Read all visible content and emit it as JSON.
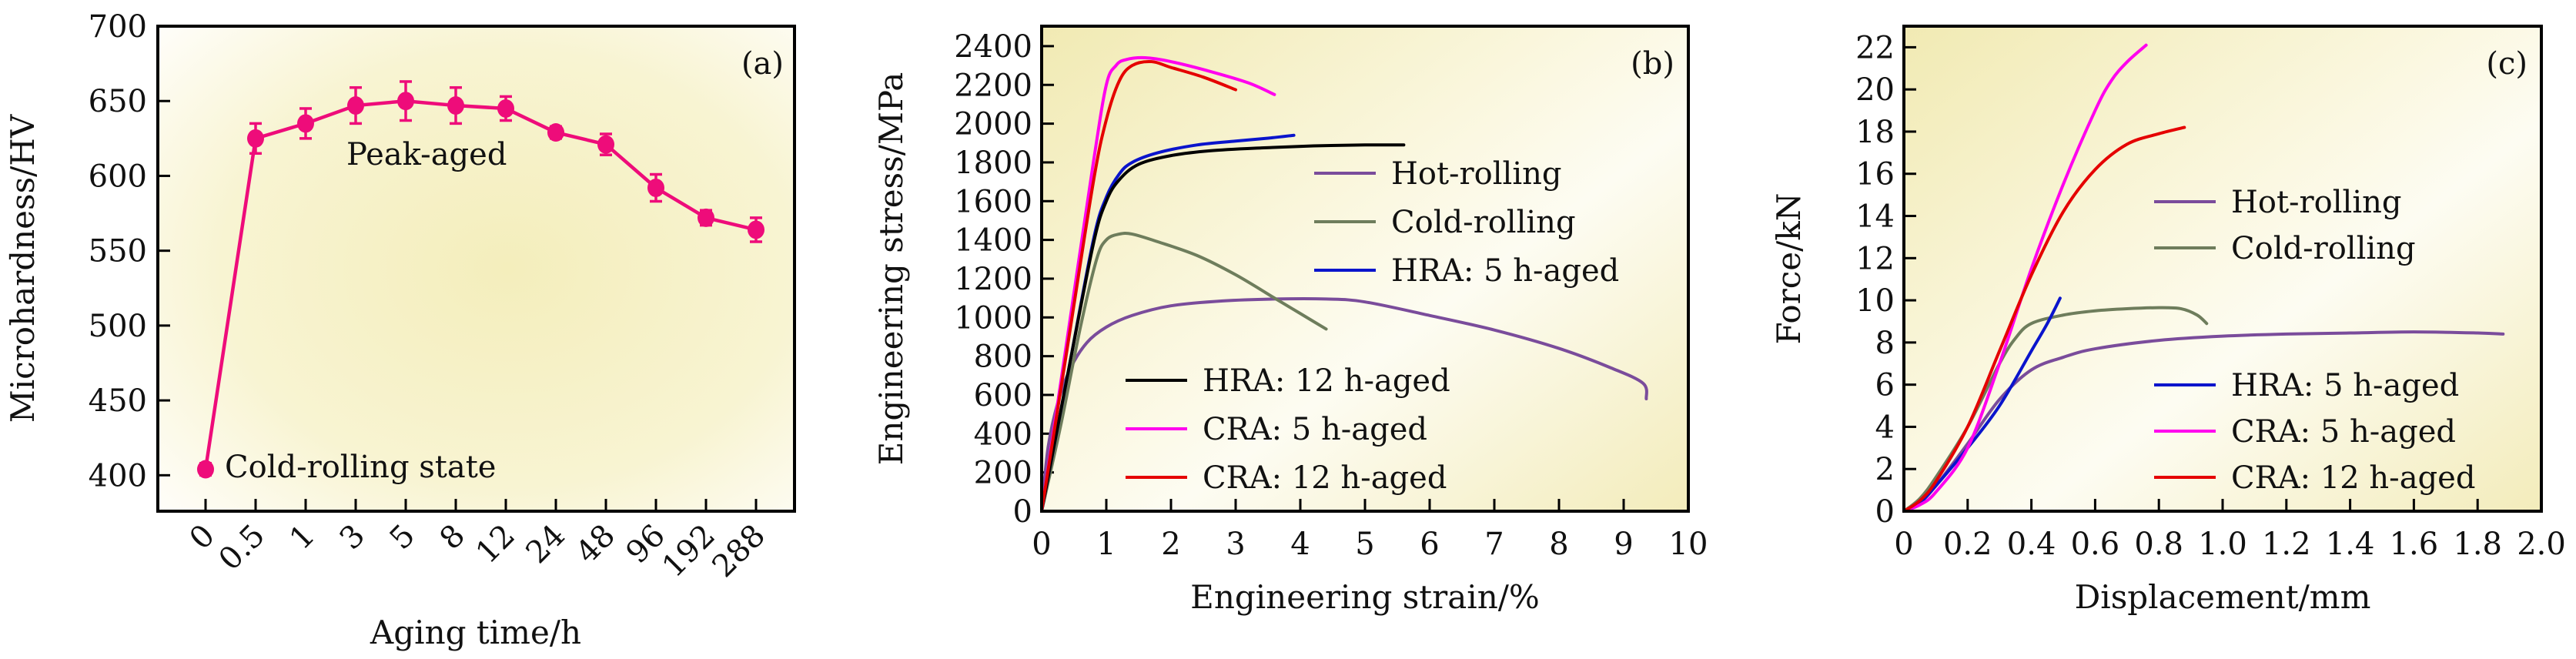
{
  "figure": {
    "background_gradient": [
      "#f3eebb",
      "#fffefa"
    ],
    "frame_color": "#000000"
  },
  "chart_data": [
    {
      "id": "a",
      "type": "line",
      "panel_label": "(a)",
      "title": "",
      "xlabel": "Aging time/h",
      "ylabel": "Microhardness/HV",
      "categories": [
        "0",
        "0.5",
        "1",
        "3",
        "5",
        "8",
        "12",
        "24",
        "48",
        "96",
        "192",
        "288"
      ],
      "ylim": [
        376,
        700
      ],
      "yticks": [
        400,
        450,
        500,
        550,
        600,
        650,
        700
      ],
      "grid": false,
      "series": [
        {
          "name": "Microhardness",
          "color": "#ee0c7a",
          "values": [
            404,
            625,
            635,
            647,
            650,
            647,
            645,
            629,
            621,
            592,
            572,
            564
          ],
          "errors": [
            4,
            10,
            10,
            12,
            13,
            12,
            8,
            4,
            7,
            9,
            5,
            8
          ]
        }
      ],
      "annotations": [
        {
          "text": "Peak-aged",
          "x_category": "5",
          "y": 613
        },
        {
          "text": "Cold-rolling state",
          "x_category": "0",
          "y": 404
        }
      ]
    },
    {
      "id": "b",
      "type": "line",
      "panel_label": "(b)",
      "title": "",
      "xlabel": "Engineering strain/%",
      "ylabel": "Engineering stress/MPa",
      "xlim": [
        0,
        10
      ],
      "ylim": [
        0,
        2503
      ],
      "xticks": [
        0,
        1,
        2,
        3,
        4,
        5,
        6,
        7,
        8,
        9,
        10
      ],
      "yticks": [
        0,
        200,
        400,
        600,
        800,
        1000,
        1200,
        1400,
        1600,
        1800,
        2000,
        2200,
        2400
      ],
      "grid": false,
      "legend_groups": [
        {
          "placement": "center-right",
          "items": [
            "Hot-rolling",
            "Cold-rolling",
            "HRA: 5 h-aged"
          ]
        },
        {
          "placement": "bottom-center",
          "items": [
            "HRA: 12 h-aged",
            "CRA: 5 h-aged",
            "CRA: 12 h-aged"
          ]
        }
      ],
      "series": [
        {
          "name": "Hot-rolling",
          "color": "#7a4c9b",
          "x": [
            0,
            0.1,
            0.25,
            0.45,
            0.7,
            1.0,
            1.4,
            2.0,
            2.8,
            3.6,
            4.4,
            5.0,
            6.0,
            7.0,
            8.0,
            8.8,
            9.3,
            9.35
          ],
          "y": [
            0,
            330,
            560,
            740,
            870,
            950,
            1010,
            1060,
            1085,
            1095,
            1095,
            1080,
            1010,
            935,
            840,
            740,
            660,
            580
          ]
        },
        {
          "name": "Cold-rolling",
          "color": "#6e7d5c",
          "x": [
            0,
            0.3,
            0.6,
            0.85,
            1.0,
            1.2,
            1.4,
            1.8,
            2.4,
            3.0,
            3.6,
            4.0,
            4.4
          ],
          "y": [
            0,
            450,
            950,
            1300,
            1400,
            1430,
            1430,
            1390,
            1320,
            1220,
            1100,
            1020,
            940
          ]
        },
        {
          "name": "HRA: 5 h-aged",
          "color": "#0a14cc",
          "x": [
            0,
            0.4,
            0.8,
            1.0,
            1.2,
            1.4,
            1.8,
            2.4,
            3.0,
            3.5,
            3.9
          ],
          "y": [
            0,
            700,
            1400,
            1620,
            1740,
            1800,
            1850,
            1890,
            1910,
            1925,
            1940
          ]
        },
        {
          "name": "HRA: 12 h-aged",
          "color": "#000000",
          "x": [
            0,
            0.4,
            0.8,
            1.0,
            1.2,
            1.5,
            2.0,
            2.6,
            3.4,
            4.2,
            5.0,
            5.6
          ],
          "y": [
            0,
            700,
            1380,
            1600,
            1710,
            1790,
            1835,
            1860,
            1875,
            1885,
            1890,
            1890
          ]
        },
        {
          "name": "CRA: 5 h-aged",
          "color": "#ff00ee",
          "x": [
            0,
            0.4,
            0.8,
            1.0,
            1.15,
            1.3,
            1.6,
            2.0,
            2.6,
            3.2,
            3.6
          ],
          "y": [
            0,
            900,
            1800,
            2200,
            2300,
            2330,
            2340,
            2320,
            2270,
            2210,
            2150
          ]
        },
        {
          "name": "CRA: 12 h-aged",
          "color": "#e50000",
          "x": [
            0,
            0.4,
            0.8,
            1.0,
            1.2,
            1.4,
            1.7,
            2.0,
            2.5,
            3.0
          ],
          "y": [
            0,
            850,
            1700,
            2020,
            2220,
            2300,
            2320,
            2290,
            2240,
            2175
          ]
        }
      ]
    },
    {
      "id": "c",
      "type": "line",
      "panel_label": "(c)",
      "title": "",
      "xlabel": "Displacement/mm",
      "ylabel": "Force/kN",
      "xlim": [
        0,
        2.0
      ],
      "ylim": [
        0,
        23
      ],
      "xticks": [
        "0",
        "0.2",
        "0.4",
        "0.6",
        "0.8",
        "1.0",
        "1.2",
        "1.4",
        "1.6",
        "1.8",
        "2.0"
      ],
      "yticks": [
        0,
        2,
        4,
        6,
        8,
        10,
        12,
        14,
        16,
        18,
        20,
        22
      ],
      "grid": false,
      "legend_groups": [
        {
          "placement": "center-right",
          "items": [
            "Hot-rolling",
            "Cold-rolling"
          ]
        },
        {
          "placement": "bottom-right",
          "items": [
            "HRA: 5 h-aged",
            "CRA: 5 h-aged",
            "CRA: 12 h-aged"
          ]
        }
      ],
      "series": [
        {
          "name": "Hot-rolling",
          "color": "#7a4c9b",
          "x": [
            0,
            0.05,
            0.1,
            0.2,
            0.3,
            0.4,
            0.5,
            0.6,
            0.8,
            1.0,
            1.2,
            1.4,
            1.6,
            1.8,
            1.88
          ],
          "y": [
            0,
            0.4,
            1.2,
            3.2,
            5.3,
            6.7,
            7.3,
            7.7,
            8.1,
            8.3,
            8.4,
            8.45,
            8.5,
            8.45,
            8.4
          ]
        },
        {
          "name": "Cold-rolling",
          "color": "#6e7d5c",
          "x": [
            0,
            0.05,
            0.1,
            0.2,
            0.3,
            0.35,
            0.4,
            0.5,
            0.6,
            0.7,
            0.8,
            0.87,
            0.92,
            0.95
          ],
          "y": [
            0,
            0.6,
            1.6,
            4.0,
            7.0,
            8.2,
            8.9,
            9.3,
            9.5,
            9.6,
            9.65,
            9.6,
            9.3,
            8.9
          ]
        },
        {
          "name": "HRA: 5 h-aged",
          "color": "#0a14cc",
          "x": [
            0,
            0.05,
            0.1,
            0.2,
            0.3,
            0.4,
            0.45,
            0.49
          ],
          "y": [
            0,
            0.4,
            1.2,
            3.0,
            5.0,
            7.6,
            8.9,
            10.1
          ]
        },
        {
          "name": "CRA: 5 h-aged",
          "color": "#ff00ee",
          "x": [
            0,
            0.05,
            0.1,
            0.2,
            0.3,
            0.4,
            0.5,
            0.6,
            0.65,
            0.7,
            0.76
          ],
          "y": [
            0,
            0.3,
            0.9,
            3.0,
            7.0,
            11.5,
            15.5,
            19.0,
            20.4,
            21.3,
            22.1
          ]
        },
        {
          "name": "CRA: 12 h-aged",
          "color": "#e50000",
          "x": [
            0,
            0.05,
            0.1,
            0.2,
            0.3,
            0.4,
            0.5,
            0.6,
            0.7,
            0.8,
            0.88
          ],
          "y": [
            0,
            0.5,
            1.4,
            4.0,
            7.6,
            11.2,
            14.2,
            16.2,
            17.4,
            17.9,
            18.2
          ]
        }
      ]
    }
  ]
}
